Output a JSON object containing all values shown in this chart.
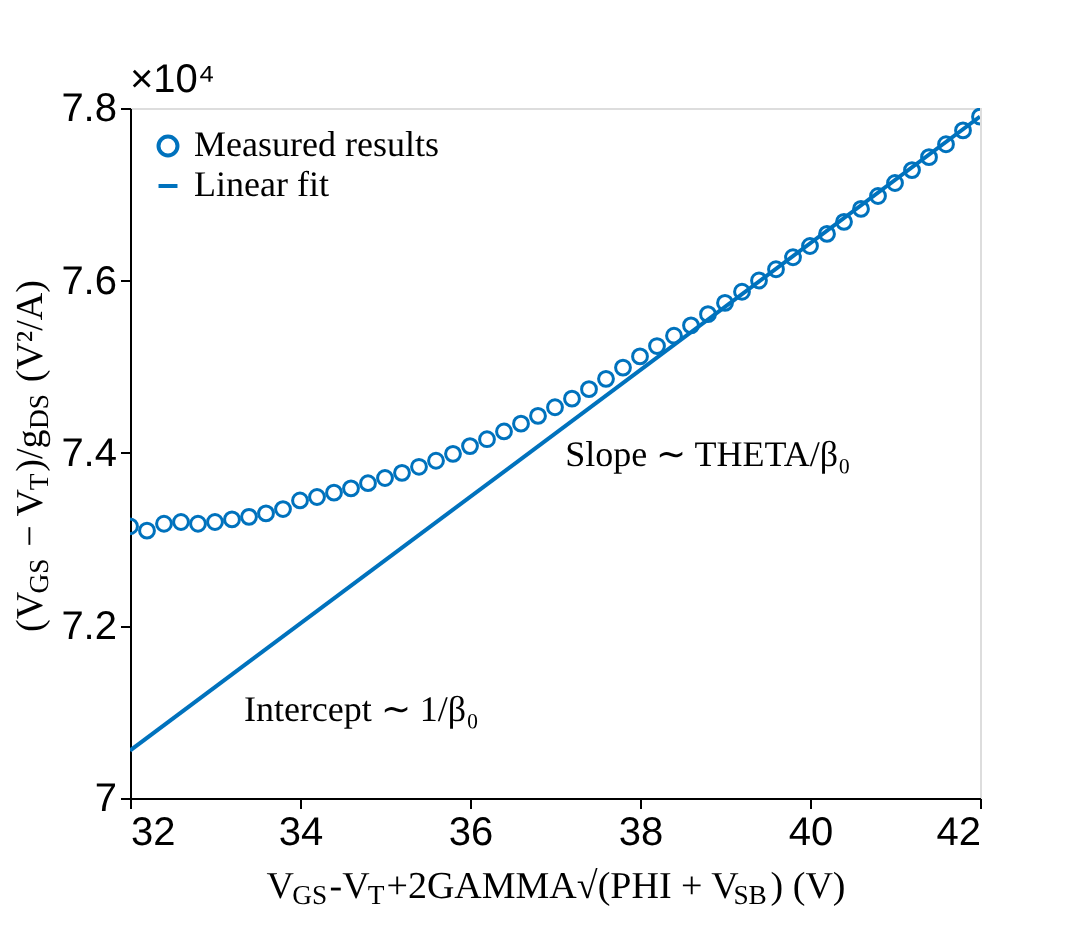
{
  "chart_data": {
    "type": "scatter",
    "xlabel": "V$_{GS}$-V$_{T}$+2GAMMA√(PHI + V$_{SB}$) (V)",
    "ylabel": "(V$_{GS}$ − V$_{T}$)/g$_{DS}$ (V²/A)",
    "annotations": [
      "×10⁴",
      "Slope ∼ THETA/β₀",
      "Intercept ∼ 1/β₀"
    ],
    "xlim": [
      32,
      42
    ],
    "xticks": [
      32,
      34,
      36,
      38,
      40,
      42
    ],
    "ylim": [
      7,
      7.8
    ],
    "yticks": [
      7,
      7.2,
      7.4,
      7.6,
      7.8
    ],
    "grid": false,
    "legend": "top left",
    "series": [
      {
        "name": "Measured results",
        "marker": "circle",
        "color": "#0072bd",
        "x": [
          32.0,
          32.2,
          32.4,
          32.6,
          32.8,
          33.0,
          33.2,
          33.4,
          33.6,
          33.8,
          34.0,
          34.2,
          34.4,
          34.6,
          34.8,
          35.0,
          35.2,
          35.4,
          35.6,
          35.8,
          36.0,
          36.2,
          36.4,
          36.6,
          36.8,
          37.0,
          37.2,
          37.4,
          37.6,
          37.8,
          38.0,
          38.2,
          38.4,
          38.6,
          38.8,
          39.0,
          39.2,
          39.4,
          39.6,
          39.8,
          40.0,
          40.2,
          40.4,
          40.6,
          40.8,
          41.0,
          41.2,
          41.4,
          41.6,
          41.8,
          42.0
        ],
        "values": [
          7.315,
          7.31,
          7.318,
          7.32,
          7.318,
          7.32,
          7.323,
          7.326,
          7.33,
          7.335,
          7.345,
          7.349,
          7.354,
          7.359,
          7.365,
          7.371,
          7.377,
          7.384,
          7.391,
          7.399,
          7.408,
          7.416,
          7.425,
          7.434,
          7.443,
          7.453,
          7.463,
          7.474,
          7.486,
          7.499,
          7.512,
          7.524,
          7.536,
          7.548,
          7.561,
          7.574,
          7.587,
          7.6,
          7.613,
          7.627,
          7.64,
          7.654,
          7.668,
          7.683,
          7.698,
          7.713,
          7.728,
          7.743,
          7.758,
          7.774,
          7.79
        ]
      },
      {
        "name": "Linear fit",
        "type": "line",
        "marker": "none",
        "line_style": "solid",
        "color": "#0072bd",
        "x": [
          32,
          42
        ],
        "values": [
          7.055,
          7.79
        ]
      }
    ]
  }
}
